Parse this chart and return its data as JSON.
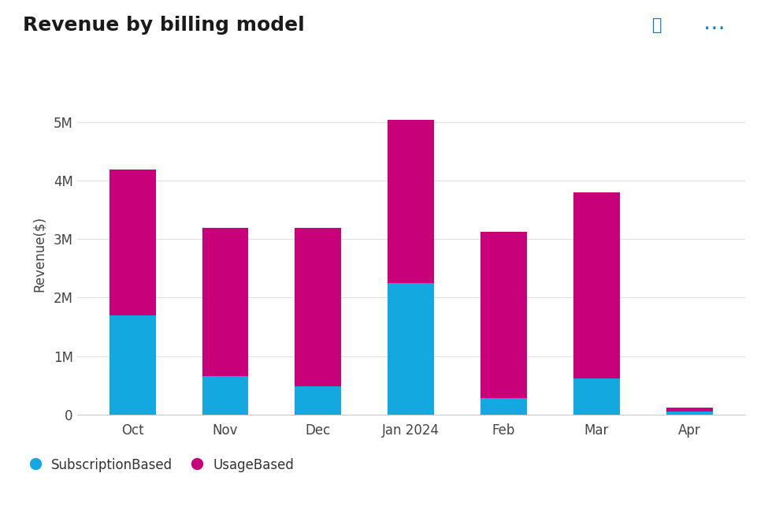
{
  "categories": [
    "Oct",
    "Nov",
    "Dec",
    "Jan 2024",
    "Feb",
    "Mar",
    "Apr"
  ],
  "subscription_based": [
    1700000,
    650000,
    480000,
    2250000,
    280000,
    620000,
    50000
  ],
  "usage_based": [
    2500000,
    2550000,
    2720000,
    2800000,
    2850000,
    3180000,
    60000
  ],
  "subscription_color": "#13A9E0",
  "usage_color": "#C8007A",
  "title": "Revenue by billing model",
  "ylabel": "Revenue($)",
  "ylim": [
    0,
    5500000
  ],
  "yticks": [
    0,
    1000000,
    2000000,
    3000000,
    4000000,
    5000000
  ],
  "ytick_labels": [
    "0",
    "1M",
    "2M",
    "3M",
    "4M",
    "5M"
  ],
  "legend_subscription": "SubscriptionBased",
  "legend_usage": "UsageBased",
  "background_color": "#FFFFFF",
  "bar_width": 0.5,
  "title_fontsize": 18,
  "axis_label_fontsize": 12,
  "tick_fontsize": 12,
  "legend_fontsize": 12,
  "grid_color": "#E0E0E0"
}
